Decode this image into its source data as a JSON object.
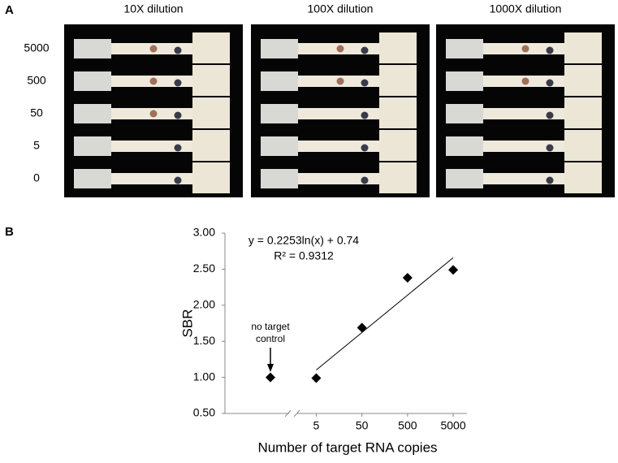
{
  "panel_a": {
    "label": "A",
    "columns": [
      "10X dilution",
      "100X dilution",
      "1000X dilution"
    ],
    "rows": [
      "5000",
      "500",
      "50",
      "5",
      "0"
    ]
  },
  "chart_data": {
    "type": "scatter",
    "panel_label": "B",
    "x_label": "Number of target RNA copies",
    "y_label": "SBR",
    "x": [
      5,
      50,
      500,
      5000
    ],
    "values": [
      0.99,
      1.69,
      2.38,
      2.49
    ],
    "color": "#000000",
    "xlog": true,
    "xlim": [
      0.05,
      10000
    ],
    "xticks": [
      5,
      50,
      500,
      5000
    ],
    "ylim": [
      0.5,
      3.0
    ],
    "yticks": [
      {
        "value": 0.5,
        "label": "0.50"
      },
      {
        "value": 1.0,
        "label": "1.00"
      },
      {
        "value": 1.5,
        "label": "1.50"
      },
      {
        "value": 2.0,
        "label": "2.00"
      },
      {
        "value": 2.5,
        "label": "2.50"
      },
      {
        "value": 3.0,
        "label": "3.00"
      }
    ],
    "control": {
      "label_lines": [
        "no target",
        "control"
      ],
      "value": 1.0
    },
    "trendline": {
      "equation": "y = 0.2253ln(x) + 0.74",
      "r_squared": "R² = 0.9312",
      "slope": 0.2253,
      "intercept": 0.74,
      "x": [
        5,
        5000
      ]
    }
  }
}
